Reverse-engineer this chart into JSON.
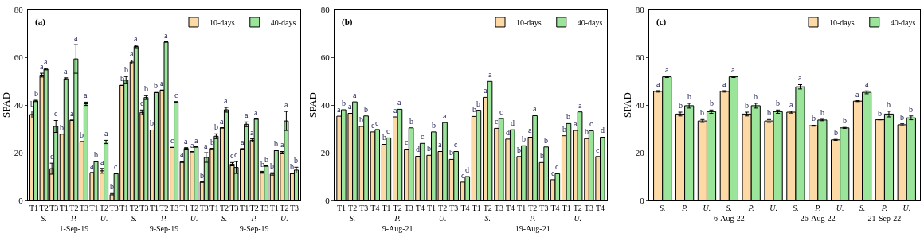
{
  "chart_data": [
    {
      "type": "bar",
      "title": "(a)",
      "ylabel": "SPAD",
      "categories": [
        "T1",
        "T2\nS.",
        "T3",
        "T1",
        "T2\nP.\n1-Sep-19",
        "T3",
        "T1",
        "T2\nU.",
        "T3",
        "T1",
        "T2\nS.",
        "T3",
        "T1",
        "T2\nP.\n9-Sep-19",
        "T3",
        "T1",
        "T2\nU.",
        "T3",
        "T1",
        "T2\nS.",
        "T3",
        "T1",
        "T2\nP.\n9-Sep-19",
        "T3",
        "T1",
        "T2\nU.",
        "T3"
      ],
      "series": [
        {
          "name": "10-days",
          "color": "#fdd9a6",
          "values": [
            36,
            52.5,
            13.3,
            27.8,
            33.6,
            24.6,
            11.6,
            12.4,
            2.4,
            48.2,
            58,
            36.9,
            29.5,
            46.2,
            22.2,
            16.2,
            20.4,
            7.7,
            21.7,
            30.4,
            15.2,
            21.6,
            25.2,
            11.8,
            11.1,
            20,
            11.3
          ],
          "errors": [
            1.5,
            0.8,
            2.3,
            null,
            null,
            null,
            null,
            1,
            0.5,
            null,
            0.8,
            1,
            null,
            null,
            null,
            0.3,
            null,
            null,
            null,
            null,
            0.7,
            null,
            0.6,
            0.4,
            0.5,
            0.5,
            null
          ],
          "value_labels": [
            "b",
            "a",
            "c",
            "b",
            "a",
            "b",
            "a",
            "a",
            "b",
            "b",
            "a",
            "c",
            "b",
            "a",
            "c",
            "a",
            "a",
            "b",
            "b",
            "a",
            "c",
            "a",
            "a",
            "b",
            "b",
            "a",
            "b"
          ]
        },
        {
          "name": "40-days",
          "color": "#9be59b",
          "values": [
            41.7,
            55,
            31,
            51,
            59.3,
            40.5,
            16.3,
            24.5,
            11.2,
            50.4,
            64.5,
            43.1,
            45.2,
            66.4,
            41.3,
            21.8,
            22.4,
            18,
            26.9,
            38,
            13.8,
            31.9,
            34.1,
            14.4,
            20.9,
            33.3,
            12.7
          ],
          "errors": [
            0.3,
            0.3,
            2.5,
            0.4,
            6,
            0.7,
            null,
            0.7,
            null,
            1.5,
            0.5,
            0.8,
            null,
            null,
            null,
            0.3,
            null,
            2,
            1,
            1,
            2.5,
            1,
            null,
            null,
            null,
            4,
            1.2
          ],
          "value_labels": [
            "b",
            "a",
            "c",
            "a",
            "a",
            "a",
            "b",
            "a",
            "c",
            "b",
            "a",
            "b",
            "b",
            "a",
            "c",
            "a",
            "a",
            "a",
            "b",
            "a",
            "c",
            "a",
            "a",
            "b",
            "b",
            "a",
            "b"
          ]
        }
      ],
      "ylim": [
        0,
        80
      ],
      "yticks": [
        0,
        20,
        40,
        60,
        80
      ],
      "legend": "top right"
    },
    {
      "type": "bar",
      "title": "(b)",
      "ylabel": "SPAD",
      "categories": [
        "T1",
        "T2\nS.",
        "T3",
        "T4",
        "T1",
        "T2\nP.\n9-Aug-21",
        "T3",
        "T4",
        "T1",
        "T2\nU.",
        "T3",
        "T4",
        "T1",
        "T2\nS.",
        "T3",
        "T4",
        "T1",
        "T2\nP.\n19-Aug-21",
        "T3",
        "T4",
        "T1",
        "T2\nU.",
        "T3",
        "T4"
      ],
      "series": [
        {
          "name": "10-days",
          "color": "#fdd9a6",
          "values": [
            35.3,
            36.5,
            31,
            28.7,
            23.5,
            35,
            21.5,
            18.5,
            18.9,
            20.5,
            17.2,
            7.7,
            35.2,
            43.2,
            30.2,
            25.7,
            18.4,
            26.5,
            15.9,
            8.7,
            27.1,
            29.3,
            25.9,
            18.4
          ],
          "value_labels": [
            "a",
            "a",
            "b",
            "c",
            "b",
            "a",
            "c",
            "d",
            "b",
            "a",
            "b",
            "c",
            "b",
            "a",
            "c",
            "d",
            "b",
            "a",
            "b",
            "c",
            "b",
            "a",
            "b",
            "c"
          ]
        },
        {
          "name": "40-days",
          "color": "#9be59b",
          "values": [
            38,
            41.3,
            35.4,
            29.7,
            26.2,
            38.2,
            30.4,
            23.9,
            28.7,
            32.6,
            20.5,
            10,
            37.8,
            49.9,
            34.3,
            29.6,
            22.9,
            35.5,
            22.4,
            11.2,
            32.2,
            37.1,
            29.2,
            26.5
          ],
          "value_labels": [
            "b",
            "a",
            "b",
            "c",
            "c",
            "a",
            "b",
            "c",
            "b",
            "a",
            "c",
            "d",
            "b",
            "a",
            "c",
            "d",
            "b",
            "a",
            "b",
            "c",
            "b",
            "a",
            "c",
            "d"
          ]
        }
      ],
      "ylim": [
        0,
        80
      ],
      "yticks": [
        0,
        20,
        40,
        60,
        80
      ],
      "legend": "top right"
    },
    {
      "type": "bar",
      "title": "(c)",
      "ylabel": "SPAD",
      "categories": [
        "S.",
        "P.",
        "U.",
        "S.\n6-Aug-22",
        "P.",
        "U.",
        "S.",
        "P.\n26-Aug-22",
        "U.",
        "S.",
        "P.\n21-Sep-22",
        "U."
      ],
      "series": [
        {
          "name": "10-days",
          "color": "#fdd9a6",
          "values": [
            45.7,
            36.2,
            33.3,
            45.7,
            36.2,
            33.3,
            37,
            31.3,
            25.4,
            41.6,
            33.8,
            31.7
          ],
          "errors": [
            0.3,
            0.8,
            0.6,
            0.3,
            0.8,
            0.6,
            0.4,
            0.2,
            0.2,
            0.2,
            null,
            0.4
          ],
          "value_labels": [
            "a",
            "b",
            "b",
            "a",
            "b",
            "b",
            "a",
            "b",
            "b",
            "a",
            "b",
            "b"
          ]
        },
        {
          "name": "40-days",
          "color": "#9be59b",
          "values": [
            51.8,
            39.7,
            37.2,
            51.8,
            39.7,
            37.2,
            47.6,
            33.7,
            30.4,
            45.3,
            36.2,
            34.6
          ],
          "errors": [
            0.3,
            1,
            0.7,
            0.3,
            1,
            0.7,
            0.9,
            0.3,
            0.2,
            0.6,
            1.2,
            0.8
          ],
          "value_labels": [
            "a",
            "b",
            "b",
            "a",
            "b",
            "b",
            "a",
            "b",
            "b",
            "a",
            "b",
            "b"
          ]
        }
      ],
      "ylim": [
        0,
        80
      ],
      "yticks": [
        0,
        20,
        40,
        60,
        80
      ],
      "legend": "top right"
    }
  ]
}
